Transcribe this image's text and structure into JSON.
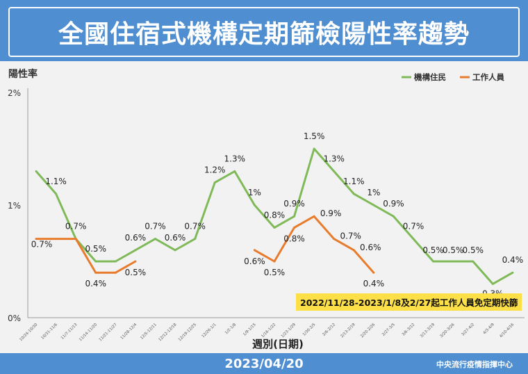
{
  "header": {
    "title": "全國住宿式機構定期篩檢陽性率趨勢"
  },
  "footer": {
    "date": "2023/04/20",
    "org": "中央流行疫情指揮中心"
  },
  "note": "2022/11/28-2023/1/8及2/27起工作人員免定期快篩",
  "chart_data": {
    "type": "line",
    "title": "全國住宿式機構定期篩檢陽性率趨勢",
    "ylabel": "陽性率",
    "xlabel": "週別(日期)",
    "ylim": [
      0,
      2
    ],
    "yticks": [
      "0%",
      "1%",
      "2%"
    ],
    "legend_position": "top-right",
    "categories": [
      "10/24-10/30",
      "10/31-11/6",
      "11/7-11/13",
      "11/14-11/20",
      "11/21-11/27",
      "11/28-12/4",
      "12/5-12/11",
      "12/12-12/18",
      "12/19-12/25",
      "12/26-1/1",
      "1/2-1/8",
      "1/9-1/15",
      "1/16-1/22",
      "1/23-1/29",
      "1/30-2/5",
      "2/6-2/12",
      "2/13-2/19",
      "2/20-2/26",
      "2/27-3/5",
      "3/6-3/12",
      "3/13-3/19",
      "3/20-3/26",
      "3/27-4/2",
      "4/3-4/9",
      "4/10-4/16"
    ],
    "series": [
      {
        "name": "機構住民",
        "color": "#7fb958",
        "values": [
          1.3,
          1.1,
          0.7,
          0.5,
          0.5,
          0.6,
          0.7,
          0.6,
          0.7,
          1.2,
          1.3,
          1.0,
          0.8,
          0.9,
          1.5,
          1.3,
          1.1,
          1.0,
          0.9,
          0.7,
          0.5,
          0.5,
          0.5,
          0.3,
          0.4
        ],
        "labels": [
          "",
          "1.1%",
          "0.7%",
          "0.5%",
          "",
          "0.6%",
          "0.7%",
          "0.6%",
          "0.7%",
          "1.2%",
          "1.3%",
          "1%",
          "0.8%",
          "0.9%",
          "1.5%",
          "1.3%",
          "1.1%",
          "1%",
          "0.9%",
          "0.7%",
          "0.5%",
          "0.5%",
          "0.5%",
          "0.3%",
          "0.4%"
        ]
      },
      {
        "name": "工作人員",
        "color": "#e87b2c",
        "values": [
          0.7,
          0.7,
          0.7,
          0.4,
          0.4,
          0.5,
          null,
          null,
          null,
          null,
          null,
          0.6,
          0.5,
          0.8,
          0.9,
          0.7,
          0.6,
          0.4,
          null,
          null,
          null,
          null,
          null,
          null,
          null
        ],
        "labels": [
          "0.7%",
          "",
          "",
          "0.4%",
          "",
          "0.5%",
          "",
          "",
          "",
          "",
          "",
          "0.6%",
          "0.5%",
          "0.8%",
          "0.9%",
          "0.7%",
          "0.6%",
          "0.4%",
          "",
          "",
          "",
          "",
          "",
          "",
          ""
        ]
      }
    ]
  }
}
